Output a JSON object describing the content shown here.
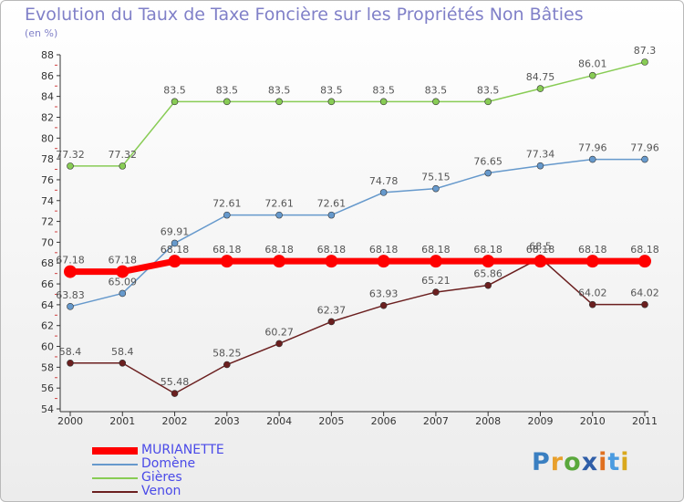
{
  "title": "Evolution du Taux de Taxe Foncière sur les Propriétés Non Bâties",
  "unit": "(en %)",
  "brand": "Proxiti",
  "chart_data": {
    "type": "line",
    "x": [
      "2000",
      "2001",
      "2002",
      "2003",
      "2004",
      "2005",
      "2006",
      "2007",
      "2008",
      "2009",
      "2010",
      "2011"
    ],
    "ylim": [
      54,
      88
    ],
    "yticks": [
      54,
      56,
      58,
      60,
      62,
      64,
      66,
      68,
      70,
      72,
      74,
      76,
      78,
      80,
      82,
      84,
      86,
      88
    ],
    "grid": false,
    "legend_position": "bottom-left",
    "series": [
      {
        "name": "Venon",
        "color": "#6b1f1f",
        "width": 1.5,
        "marker": 3.5,
        "values": [
          58.4,
          58.4,
          55.48,
          58.25,
          60.27,
          62.37,
          63.93,
          65.21,
          65.86,
          68.5,
          64.02,
          64.02
        ],
        "labels": [
          "58.4",
          "58.4",
          "55.48",
          "58.25",
          "60.27",
          "62.37",
          "63.93",
          "65.21",
          "65.86",
          "68.5",
          "64.02",
          "64.02"
        ]
      },
      {
        "name": "Gières",
        "color": "#88cc55",
        "width": 1.5,
        "marker": 3.5,
        "values": [
          77.32,
          77.32,
          83.5,
          83.5,
          83.5,
          83.5,
          83.5,
          83.5,
          83.5,
          84.75,
          86.01,
          87.3
        ],
        "labels": [
          "77.32",
          "77.32",
          "83.5",
          "83.5",
          "83.5",
          "83.5",
          "83.5",
          "83.5",
          "83.5",
          "84.75",
          "86.01",
          "87.3"
        ]
      },
      {
        "name": "Domène",
        "color": "#6699cc",
        "width": 1.5,
        "marker": 3.5,
        "values": [
          63.83,
          65.09,
          69.91,
          72.61,
          72.61,
          72.61,
          74.78,
          75.15,
          76.65,
          77.34,
          77.96,
          77.96
        ],
        "labels": [
          "63.83",
          "65.09",
          "69.91",
          "72.61",
          "72.61",
          "72.61",
          "74.78",
          "75.15",
          "76.65",
          "77.34",
          "77.96",
          "77.96"
        ]
      },
      {
        "name": "MURIANETTE",
        "color": "#ff0000",
        "width": 7,
        "marker": 7,
        "values": [
          67.18,
          67.18,
          68.18,
          68.18,
          68.18,
          68.18,
          68.18,
          68.18,
          68.18,
          68.18,
          68.18,
          68.18
        ],
        "labels": [
          "67.18",
          "67.18",
          "68.18",
          "68.18",
          "68.18",
          "68.18",
          "68.18",
          "68.18",
          "68.18",
          "68.18",
          "68.18",
          "68.18"
        ]
      }
    ],
    "legend": [
      "MURIANETTE",
      "Domène",
      "Gières",
      "Venon"
    ]
  }
}
